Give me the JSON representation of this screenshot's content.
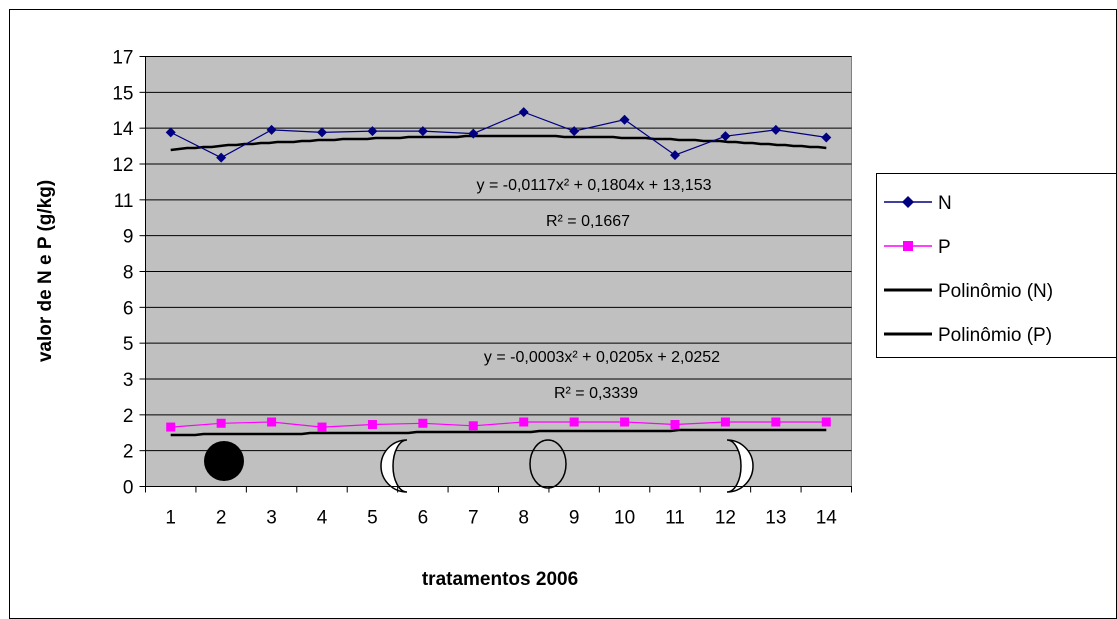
{
  "chart_data": {
    "type": "line",
    "xlabel": "tratamentos 2006",
    "ylabel": "valor de N e P (g/kg)",
    "x": [
      1,
      2,
      3,
      4,
      5,
      6,
      7,
      8,
      9,
      10,
      11,
      12,
      13,
      14
    ],
    "y_tick_labels": [
      "0",
      "2",
      "2",
      "3",
      "5",
      "6",
      "8",
      "9",
      "11",
      "12",
      "14",
      "15",
      "17"
    ],
    "x_tick_labels": [
      "1",
      "2",
      "3",
      "4",
      "5",
      "6",
      "7",
      "8",
      "9",
      "10",
      "11",
      "12",
      "13",
      "14"
    ],
    "ylim": [
      0,
      17
    ],
    "grid": true,
    "legend_position": "right",
    "series": [
      {
        "name": "N",
        "color": "#000080",
        "marker": "diamond",
        "values": [
          14.0,
          13.0,
          14.1,
          14.0,
          14.05,
          14.05,
          13.95,
          14.8,
          14.05,
          14.5,
          13.1,
          13.85,
          14.1,
          13.8
        ]
      },
      {
        "name": "P",
        "color": "#ff00ff",
        "marker": "square",
        "values": [
          2.35,
          2.5,
          2.55,
          2.35,
          2.45,
          2.5,
          2.4,
          2.55,
          2.55,
          2.55,
          2.45,
          2.55,
          2.55,
          2.55
        ]
      }
    ],
    "trendlines": [
      {
        "name": "Polinômio (N)",
        "color": "#000000",
        "coefficients": [
          -0.0117,
          0.1804,
          13.153
        ],
        "equation": "y = -0,0117x² + 0,1804x + 13,153",
        "r2": "R² = 0,1667"
      },
      {
        "name": "Polinômio (P)",
        "color": "#000000",
        "coefficients": [
          -0.0003,
          0.0205,
          2.0252
        ],
        "equation": "y = -0,0003x² + 0,0205x + 2,0252",
        "r2": "R² = 0,3339"
      }
    ]
  }
}
